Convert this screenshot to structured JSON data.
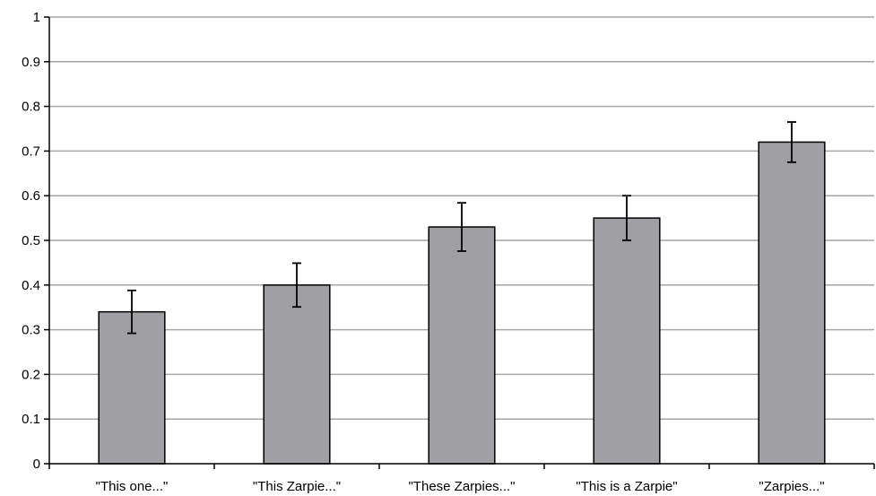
{
  "chart_data": {
    "type": "bar",
    "title": "",
    "xlabel": "",
    "ylabel": "",
    "categories": [
      "\"This one...\"",
      "\"This Zarpie...\"",
      "\"These Zarpies...\"",
      "\"This is a Zarpie\"",
      "\"Zarpies...\""
    ],
    "values": [
      0.34,
      0.4,
      0.53,
      0.55,
      0.72
    ],
    "error": [
      0.048,
      0.049,
      0.054,
      0.05,
      0.045
    ],
    "ylim": [
      0,
      1
    ],
    "yticks": [
      "0",
      "0.1",
      "0.2",
      "0.3",
      "0.4",
      "0.5",
      "0.6",
      "0.7",
      "0.8",
      "0.9",
      "1"
    ],
    "grid": true,
    "legend": "none",
    "colors": {
      "bar_fill": "#a0a0a4",
      "bar_stroke": "#000000",
      "grid": "#a6a6a6",
      "axis": "#000000"
    }
  }
}
